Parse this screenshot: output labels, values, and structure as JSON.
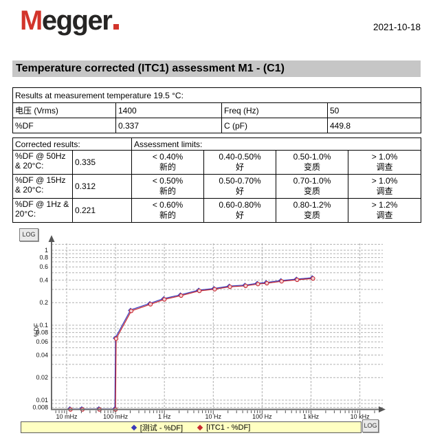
{
  "header": {
    "logo": "Megger",
    "date": "2021-10-18"
  },
  "title": "Temperature corrected (ITC1) assessment M1 - (C1)",
  "results_table": {
    "title": "Results at measurement temperature 19.5 °C:",
    "rows": [
      [
        "电压 (Vrms)",
        "1400",
        "Freq (Hz)",
        "50"
      ],
      [
        "%DF",
        "0.337",
        "C (pF)",
        "449.8"
      ]
    ]
  },
  "corrected_table": {
    "header_left": "Corrected results:",
    "header_right": "Assessment limits:",
    "rows": [
      {
        "label": "%DF @ 50Hz & 20°C:",
        "value": "0.335",
        "limits": [
          {
            "range": "< 0.40%",
            "grade": "新的"
          },
          {
            "range": "0.40-0.50%",
            "grade": "好"
          },
          {
            "range": "0.50-1.0%",
            "grade": "变质"
          },
          {
            "range": "> 1.0%",
            "grade": "调查"
          }
        ]
      },
      {
        "label": "%DF @ 15Hz & 20°C:",
        "value": "0.312",
        "limits": [
          {
            "range": "< 0.50%",
            "grade": "新的"
          },
          {
            "range": "0.50-0.70%",
            "grade": "好"
          },
          {
            "range": "0.70-1.0%",
            "grade": "变质"
          },
          {
            "range": "> 1.0%",
            "grade": "调查"
          }
        ]
      },
      {
        "label": "%DF @ 1Hz & 20°C:",
        "value": "0.221",
        "limits": [
          {
            "range": "< 0.60%",
            "grade": "新的"
          },
          {
            "range": "0.60-0.80%",
            "grade": "好"
          },
          {
            "range": "0.80-1.2%",
            "grade": "变质"
          },
          {
            "range": "> 1.2%",
            "grade": "调查"
          }
        ]
      }
    ]
  },
  "chart": {
    "log_button": "LOG",
    "legend": [
      {
        "marker_color": "#3a3ab8",
        "label": "[测试 - %DF]"
      },
      {
        "marker_color": "#c82830",
        "label": "[ITC1 - %DF]"
      }
    ]
  },
  "chart_data": {
    "type": "line",
    "x_scale": "log",
    "y_scale": "log",
    "ylabel": "%DF",
    "xlabel": "",
    "grid": true,
    "legend_position": "bottom",
    "x_range_hz": [
      0.005,
      30000
    ],
    "y_range": [
      0.0068,
      1.34
    ],
    "x_ticks": [
      {
        "f": 0.01,
        "label": "10 mHz"
      },
      {
        "f": 0.1,
        "label": "100 mHz"
      },
      {
        "f": 1,
        "label": "1 Hz"
      },
      {
        "f": 10,
        "label": "10 Hz"
      },
      {
        "f": 100,
        "label": "100 Hz"
      },
      {
        "f": 1000,
        "label": "1 kHz"
      },
      {
        "f": 10000,
        "label": "10 kHz"
      }
    ],
    "y_ticks": [
      {
        "v": 1,
        "label": "1"
      },
      {
        "v": 0.8,
        "label": "0.8"
      },
      {
        "v": 0.6,
        "label": "0.6"
      },
      {
        "v": 0.4,
        "label": "0.4"
      },
      {
        "v": 0.2,
        "label": "0.2"
      },
      {
        "v": 0.1,
        "label": "0.1"
      },
      {
        "v": 0.08,
        "label": "0.08"
      },
      {
        "v": 0.06,
        "label": "0.06"
      },
      {
        "v": 0.04,
        "label": "0.04"
      },
      {
        "v": 0.02,
        "label": "0.02"
      },
      {
        "v": 0.01,
        "label": "0.01"
      },
      {
        "v": 0.008,
        "label": "0.008"
      }
    ],
    "note": "Points at the lowest frequencies lie below y=0.008 and are clipped at the axis floor (drawn as 0.0075)",
    "series": [
      {
        "name": "测试 - %DF",
        "color": "#3a3ab8",
        "x": [
          0.012,
          0.021,
          0.047,
          0.1,
          0.103,
          0.21,
          0.52,
          1.0,
          2.2,
          5.2,
          10.7,
          22,
          46,
          82,
          125,
          250,
          520,
          1100
        ],
        "y": [
          0.0075,
          0.0075,
          0.0075,
          0.0075,
          0.067,
          0.157,
          0.192,
          0.223,
          0.25,
          0.289,
          0.304,
          0.327,
          0.337,
          0.356,
          0.365,
          0.387,
          0.405,
          0.422
        ]
      },
      {
        "name": "ITC1 - %DF",
        "color": "#c82830",
        "x": [
          0.012,
          0.021,
          0.047,
          0.1,
          0.103,
          0.21,
          0.52,
          1.0,
          2.2,
          5.2,
          10.7,
          22,
          46,
          82,
          125,
          250,
          520,
          1100
        ],
        "y": [
          0.0075,
          0.0075,
          0.0075,
          0.0075,
          0.066,
          0.155,
          0.19,
          0.221,
          0.248,
          0.287,
          0.302,
          0.325,
          0.335,
          0.354,
          0.363,
          0.385,
          0.403,
          0.42
        ]
      }
    ]
  }
}
